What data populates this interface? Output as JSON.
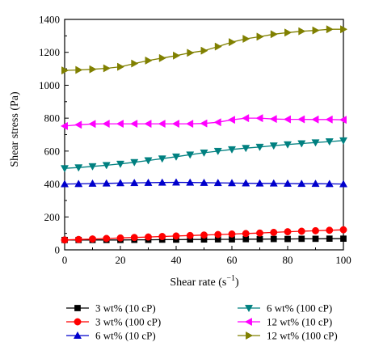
{
  "chart_data": {
    "type": "line",
    "xlabel": "Shear rate (s",
    "xlabel_sup": "−1",
    "xlabel_close": ")",
    "ylabel": "Shear stress (Pa)",
    "xlim": [
      0,
      100
    ],
    "ylim": [
      0,
      1400
    ],
    "xticks": [
      0,
      20,
      40,
      60,
      80,
      100
    ],
    "yticks": [
      0,
      200,
      400,
      600,
      800,
      1000,
      1200,
      1400
    ],
    "grid": false,
    "legend_position": "bottom",
    "series": [
      {
        "name": "3 wt% (10 cP)",
        "color": "#000000",
        "marker": "square",
        "x": [
          0,
          5,
          10,
          15,
          20,
          25,
          30,
          35,
          40,
          45,
          50,
          55,
          60,
          65,
          70,
          75,
          80,
          85,
          90,
          95,
          100
        ],
        "y": [
          60,
          60,
          60,
          60,
          60,
          61,
          61,
          62,
          62,
          63,
          63,
          64,
          64,
          65,
          65,
          66,
          66,
          67,
          67,
          68,
          68
        ]
      },
      {
        "name": "3 wt% (100 cP)",
        "color": "#ff0000",
        "marker": "circle",
        "x": [
          0,
          5,
          10,
          15,
          20,
          25,
          30,
          35,
          40,
          45,
          50,
          55,
          60,
          65,
          70,
          75,
          80,
          85,
          90,
          95,
          100
        ],
        "y": [
          60,
          63,
          66,
          69,
          72,
          75,
          78,
          81,
          84,
          87,
          90,
          93,
          96,
          99,
          102,
          106,
          110,
          113,
          116,
          119,
          122
        ]
      },
      {
        "name": "6 wt% (10 cP)",
        "color": "#0000cc",
        "marker": "triangle-up",
        "x": [
          0,
          5,
          10,
          15,
          20,
          25,
          30,
          35,
          40,
          45,
          50,
          55,
          60,
          65,
          70,
          75,
          80,
          85,
          90,
          95,
          100
        ],
        "y": [
          400,
          401,
          403,
          404,
          406,
          407,
          408,
          409,
          410,
          409,
          408,
          407,
          406,
          405,
          404,
          404,
          403,
          402,
          402,
          401,
          400
        ]
      },
      {
        "name": "6 wt% (100 cP)",
        "color": "#008080",
        "marker": "triangle-down",
        "x": [
          0,
          5,
          10,
          15,
          20,
          25,
          30,
          35,
          40,
          45,
          50,
          55,
          60,
          65,
          70,
          75,
          80,
          85,
          90,
          95,
          100
        ],
        "y": [
          495,
          500,
          507,
          514,
          522,
          532,
          543,
          554,
          566,
          578,
          590,
          600,
          610,
          618,
          625,
          633,
          640,
          646,
          652,
          658,
          664
        ]
      },
      {
        "name": "12 wt% (10 cP)",
        "color": "#ff00ff",
        "marker": "triangle-left",
        "x": [
          0,
          5,
          10,
          15,
          20,
          25,
          30,
          35,
          40,
          45,
          50,
          55,
          60,
          65,
          70,
          75,
          80,
          85,
          90,
          95,
          100
        ],
        "y": [
          752,
          760,
          765,
          766,
          766,
          766,
          766,
          766,
          766,
          766,
          768,
          775,
          790,
          800,
          800,
          795,
          793,
          793,
          792,
          792,
          790
        ]
      },
      {
        "name": "12 wt% (100 cP)",
        "color": "#808000",
        "marker": "triangle-right",
        "x": [
          0,
          5,
          10,
          15,
          20,
          25,
          30,
          35,
          40,
          45,
          50,
          55,
          60,
          65,
          70,
          75,
          80,
          85,
          90,
          95,
          100
        ],
        "y": [
          1090,
          1093,
          1097,
          1103,
          1112,
          1132,
          1150,
          1165,
          1180,
          1197,
          1210,
          1235,
          1262,
          1282,
          1295,
          1310,
          1320,
          1328,
          1333,
          1340,
          1340
        ]
      }
    ]
  }
}
